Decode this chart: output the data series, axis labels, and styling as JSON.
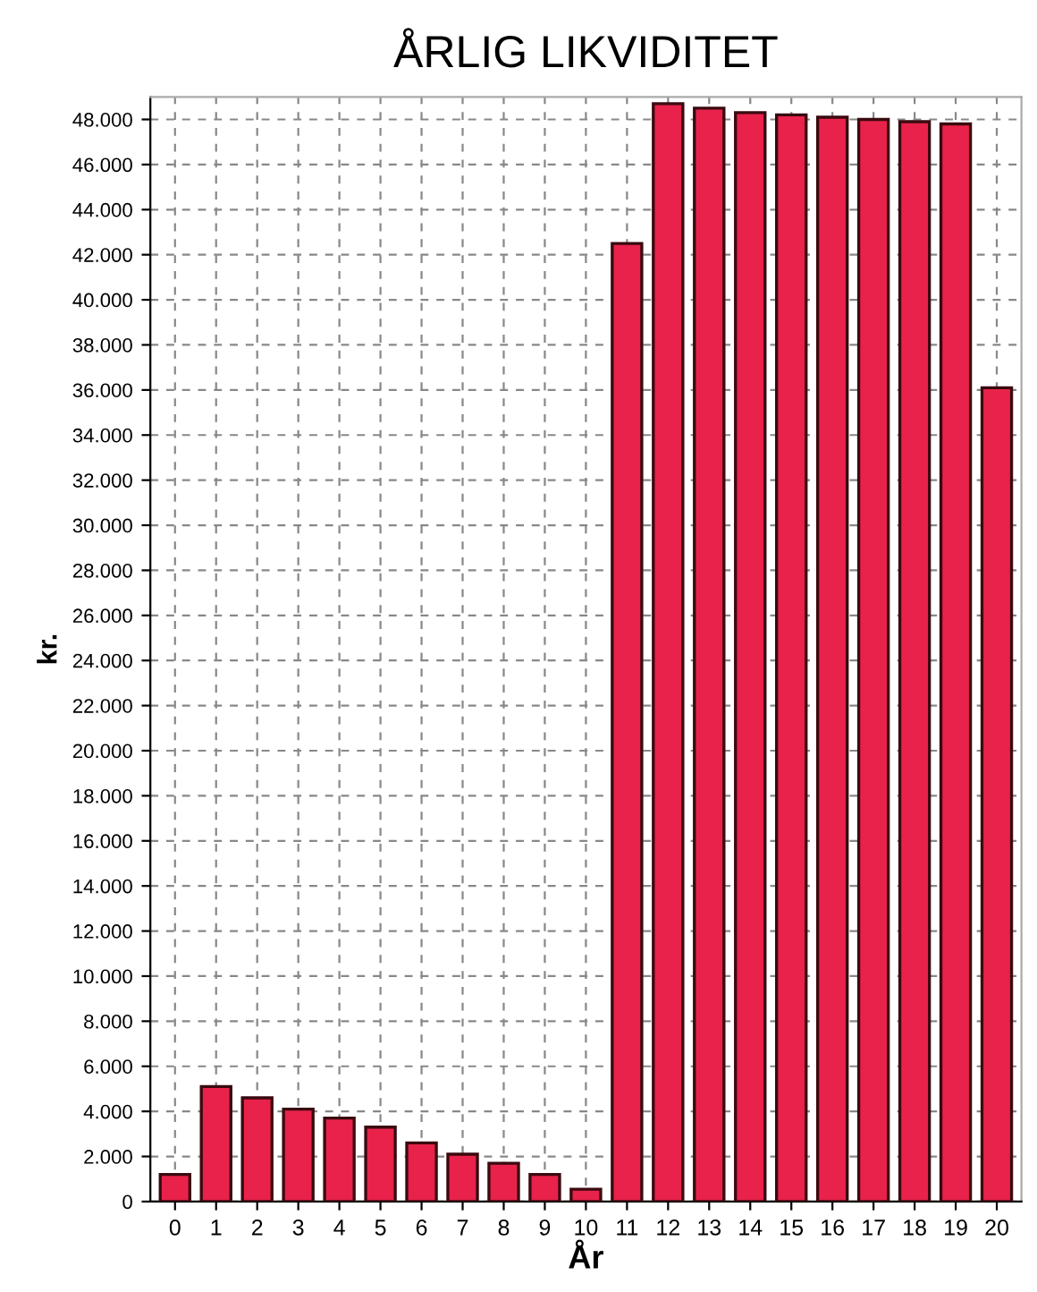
{
  "chart_data": {
    "type": "bar",
    "title": "ÅRLIG LIKVIDITET",
    "xlabel": "År",
    "ylabel": "kr.",
    "categories": [
      "0",
      "1",
      "2",
      "3",
      "4",
      "5",
      "6",
      "7",
      "8",
      "9",
      "10",
      "11",
      "12",
      "13",
      "14",
      "15",
      "16",
      "17",
      "18",
      "19",
      "20"
    ],
    "values": [
      1200,
      5100,
      4600,
      4100,
      3700,
      3300,
      2600,
      2100,
      1700,
      1200,
      550,
      42500,
      48700,
      48500,
      48300,
      48200,
      48100,
      48000,
      47900,
      47800,
      36100
    ],
    "color": "#e8224a",
    "ylim": [
      0,
      49000
    ],
    "yticks": [
      0,
      {
        "value": 2000,
        "label": "2.000"
      },
      {
        "value": 4000,
        "label": "4.000"
      },
      {
        "value": 6000,
        "label": "6.000"
      },
      {
        "value": 8000,
        "label": "8.000"
      },
      {
        "value": 10000,
        "label": "10.000"
      },
      {
        "value": 12000,
        "label": "12.000"
      },
      {
        "value": 14000,
        "label": "14.000"
      },
      {
        "value": 16000,
        "label": "16.000"
      },
      {
        "value": 18000,
        "label": "18.000"
      },
      {
        "value": 20000,
        "label": "20.000"
      },
      {
        "value": 22000,
        "label": "22.000"
      },
      {
        "value": 24000,
        "label": "24.000"
      },
      {
        "value": 26000,
        "label": "26.000"
      },
      {
        "value": 28000,
        "label": "28.000"
      },
      {
        "value": 30000,
        "label": "30.000"
      },
      {
        "value": 32000,
        "label": "32.000"
      },
      {
        "value": 34000,
        "label": "34.000"
      },
      {
        "value": 36000,
        "label": "36.000"
      },
      {
        "value": 38000,
        "label": "38.000"
      },
      {
        "value": 40000,
        "label": "40.000"
      },
      {
        "value": 42000,
        "label": "42.000"
      },
      {
        "value": 44000,
        "label": "44.000"
      },
      {
        "value": 46000,
        "label": "46.000"
      },
      {
        "value": 48000,
        "label": "48.000"
      }
    ],
    "grid": true
  }
}
